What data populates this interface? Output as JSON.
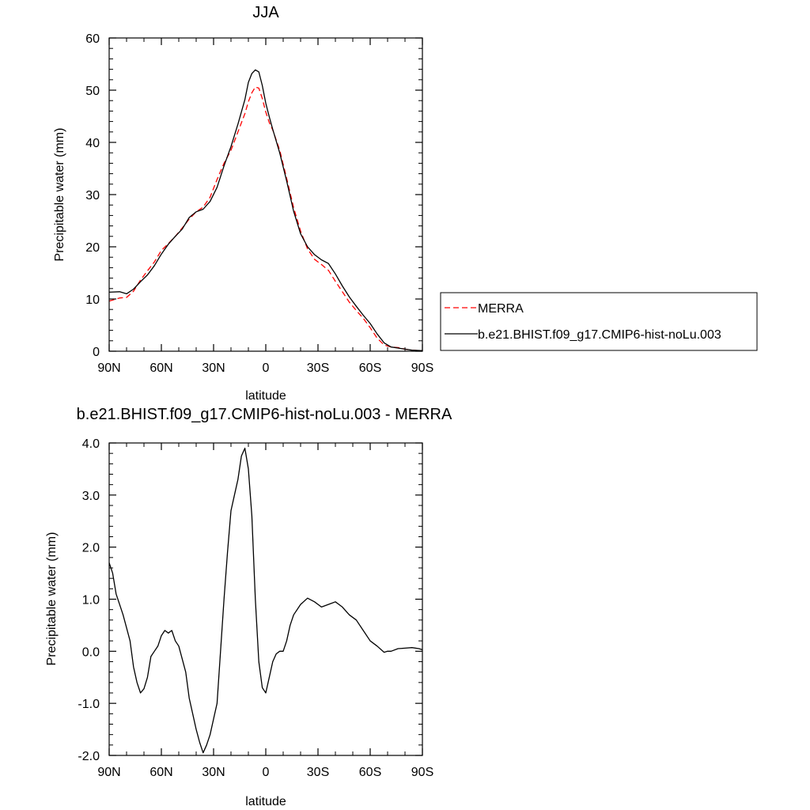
{
  "chart_data": [
    {
      "type": "line",
      "title": "JJA",
      "xlabel": "latitude",
      "ylabel": "Precipitable water (mm)",
      "xlim": [
        90,
        -90
      ],
      "ylim": [
        0,
        60
      ],
      "xticks": [
        90,
        60,
        30,
        0,
        -30,
        -60,
        -90
      ],
      "xtick_labels": [
        "90N",
        "60N",
        "30N",
        "0",
        "30S",
        "60S",
        "90S"
      ],
      "yticks": [
        0,
        10,
        20,
        30,
        40,
        50,
        60
      ],
      "ytick_labels": [
        "0",
        "10",
        "20",
        "30",
        "40",
        "50",
        "60"
      ],
      "grid": false,
      "legend_position": "right",
      "series": [
        {
          "name": "MERRA",
          "color": "#ff0000",
          "style": "dashed",
          "x": [
            90,
            84,
            80,
            76,
            72,
            68,
            64,
            60,
            56,
            52,
            48,
            44,
            40,
            36,
            32,
            28,
            24,
            20,
            16,
            12,
            10,
            8,
            6,
            4,
            2,
            0,
            -2,
            -4,
            -8,
            -12,
            -16,
            -20,
            -24,
            -28,
            -32,
            -36,
            -40,
            -44,
            -48,
            -52,
            -56,
            -60,
            -64,
            -68,
            -72,
            -76,
            -80,
            -84,
            -90
          ],
          "y": [
            9.6,
            10.2,
            10.3,
            11.5,
            13.6,
            15.4,
            17.1,
            19.3,
            20.6,
            22.0,
            23.6,
            25.3,
            26.7,
            27.6,
            29.5,
            32.9,
            36.0,
            38.5,
            42.0,
            45.5,
            47.8,
            49.5,
            50.6,
            50.4,
            48.4,
            45.8,
            43.8,
            42.4,
            38.5,
            33.1,
            27.5,
            23.0,
            19.6,
            17.6,
            16.6,
            15.5,
            13.4,
            11.4,
            9.4,
            7.8,
            6.3,
            4.5,
            2.5,
            1.2,
            0.8,
            0.7,
            0.4,
            0.2,
            0.1
          ]
        },
        {
          "name": "b.e21.BHIST.f09_g17.CMIP6-hist-noLu.003",
          "color": "#000000",
          "style": "solid",
          "x": [
            90,
            84,
            80,
            76,
            72,
            68,
            64,
            60,
            56,
            52,
            48,
            44,
            40,
            36,
            32,
            28,
            24,
            20,
            16,
            12,
            10,
            8,
            6,
            4,
            2,
            0,
            -2,
            -4,
            -8,
            -12,
            -16,
            -20,
            -24,
            -28,
            -32,
            -36,
            -40,
            -44,
            -48,
            -52,
            -56,
            -60,
            -64,
            -68,
            -72,
            -76,
            -80,
            -84,
            -90
          ],
          "y": [
            11.3,
            11.4,
            11.0,
            11.9,
            13.3,
            14.6,
            16.4,
            18.6,
            20.5,
            22.0,
            23.4,
            25.6,
            26.7,
            27.2,
            28.7,
            31.4,
            35.5,
            39.2,
            43.5,
            48.2,
            51.5,
            53.2,
            53.9,
            53.5,
            50.9,
            47.5,
            44.9,
            42.5,
            38.0,
            32.6,
            26.8,
            22.5,
            20.0,
            18.5,
            17.5,
            16.8,
            14.8,
            12.5,
            10.4,
            8.6,
            6.9,
            5.3,
            3.3,
            1.6,
            0.8,
            0.6,
            0.4,
            0.2,
            0.1
          ]
        }
      ]
    },
    {
      "type": "line",
      "title": "b.e21.BHIST.f09_g17.CMIP6-hist-noLu.003 - MERRA",
      "xlabel": "latitude",
      "ylabel": "Precipitable water (mm)",
      "xlim": [
        90,
        -90
      ],
      "ylim": [
        -2.0,
        4.0
      ],
      "xticks": [
        90,
        60,
        30,
        0,
        -30,
        -60,
        -90
      ],
      "xtick_labels": [
        "90N",
        "60N",
        "30N",
        "0",
        "30S",
        "60S",
        "90S"
      ],
      "yticks": [
        -2,
        -1,
        0,
        1,
        2,
        3,
        4
      ],
      "ytick_labels": [
        "-2.0",
        "-1.0",
        "0.0",
        "1.0",
        "2.0",
        "3.0",
        "4.0"
      ],
      "grid": false,
      "series": [
        {
          "color": "#000000",
          "style": "solid",
          "x": [
            90,
            88,
            86,
            84,
            82,
            80,
            78,
            76,
            74,
            72,
            70,
            68,
            66,
            64,
            62,
            60,
            58,
            56,
            54,
            52,
            50,
            48,
            46,
            44,
            42,
            40,
            38,
            36,
            34,
            32,
            30,
            28,
            26,
            24,
            22,
            20,
            18,
            16,
            14,
            12,
            10,
            8,
            6,
            4,
            2,
            0,
            -2,
            -4,
            -6,
            -8,
            -10,
            -12,
            -14,
            -16,
            -20,
            -24,
            -28,
            -32,
            -36,
            -40,
            -44,
            -48,
            -52,
            -56,
            -60,
            -64,
            -68,
            -70,
            -72,
            -76,
            -80,
            -84,
            -88,
            -90
          ],
          "y": [
            1.7,
            1.5,
            1.1,
            0.9,
            0.7,
            0.45,
            0.2,
            -0.3,
            -0.6,
            -0.8,
            -0.72,
            -0.5,
            -0.1,
            0.0,
            0.1,
            0.3,
            0.4,
            0.35,
            0.4,
            0.2,
            0.1,
            -0.15,
            -0.4,
            -0.9,
            -1.2,
            -1.5,
            -1.75,
            -1.95,
            -1.8,
            -1.6,
            -1.3,
            -1.0,
            0.0,
            1.0,
            1.9,
            2.7,
            3.0,
            3.3,
            3.75,
            3.9,
            3.5,
            2.6,
            1.0,
            -0.2,
            -0.7,
            -0.8,
            -0.5,
            -0.2,
            -0.05,
            0.0,
            0.0,
            0.2,
            0.5,
            0.7,
            0.9,
            1.02,
            0.95,
            0.85,
            0.9,
            0.95,
            0.85,
            0.7,
            0.6,
            0.4,
            0.2,
            0.1,
            -0.02,
            0.0,
            0.0,
            0.05,
            0.06,
            0.07,
            0.05,
            0.03
          ]
        }
      ]
    }
  ]
}
